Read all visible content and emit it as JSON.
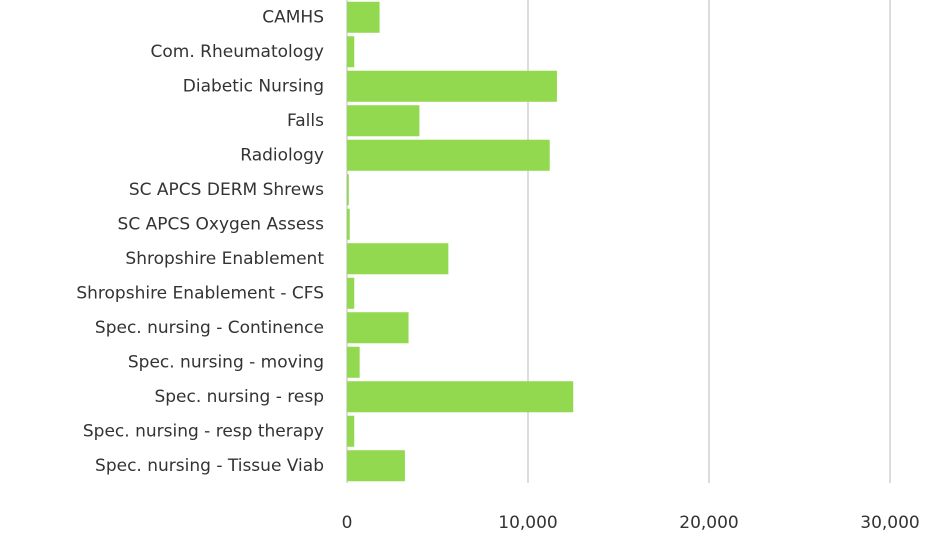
{
  "chart_data": {
    "type": "bar",
    "orientation": "horizontal",
    "categories": [
      "CAMHS",
      "Com. Rheumatology",
      "Diabetic Nursing",
      "Falls",
      "Radiology",
      "SC APCS DERM Shrews",
      "SC APCS Oxygen Assess",
      "Shropshire Enablement",
      "Shropshire Enablement - CFS",
      "Spec. nursing - Continence",
      "Spec. nursing - moving",
      "Spec. nursing - resp",
      "Spec. nursing - resp therapy",
      "Spec. nursing - Tissue Viab"
    ],
    "values": [
      1800,
      400,
      11600,
      4000,
      11200,
      100,
      150,
      5600,
      400,
      3400,
      700,
      12500,
      400,
      3200
    ],
    "color": "#92d950",
    "xlim": [
      0,
      30000
    ],
    "xticks": [
      0,
      {
        "value": 10000,
        "label": "10,000"
      },
      {
        "value": 20000,
        "label": "20,000"
      },
      {
        "value": 30000,
        "label": "30,000"
      }
    ],
    "grid": true
  }
}
